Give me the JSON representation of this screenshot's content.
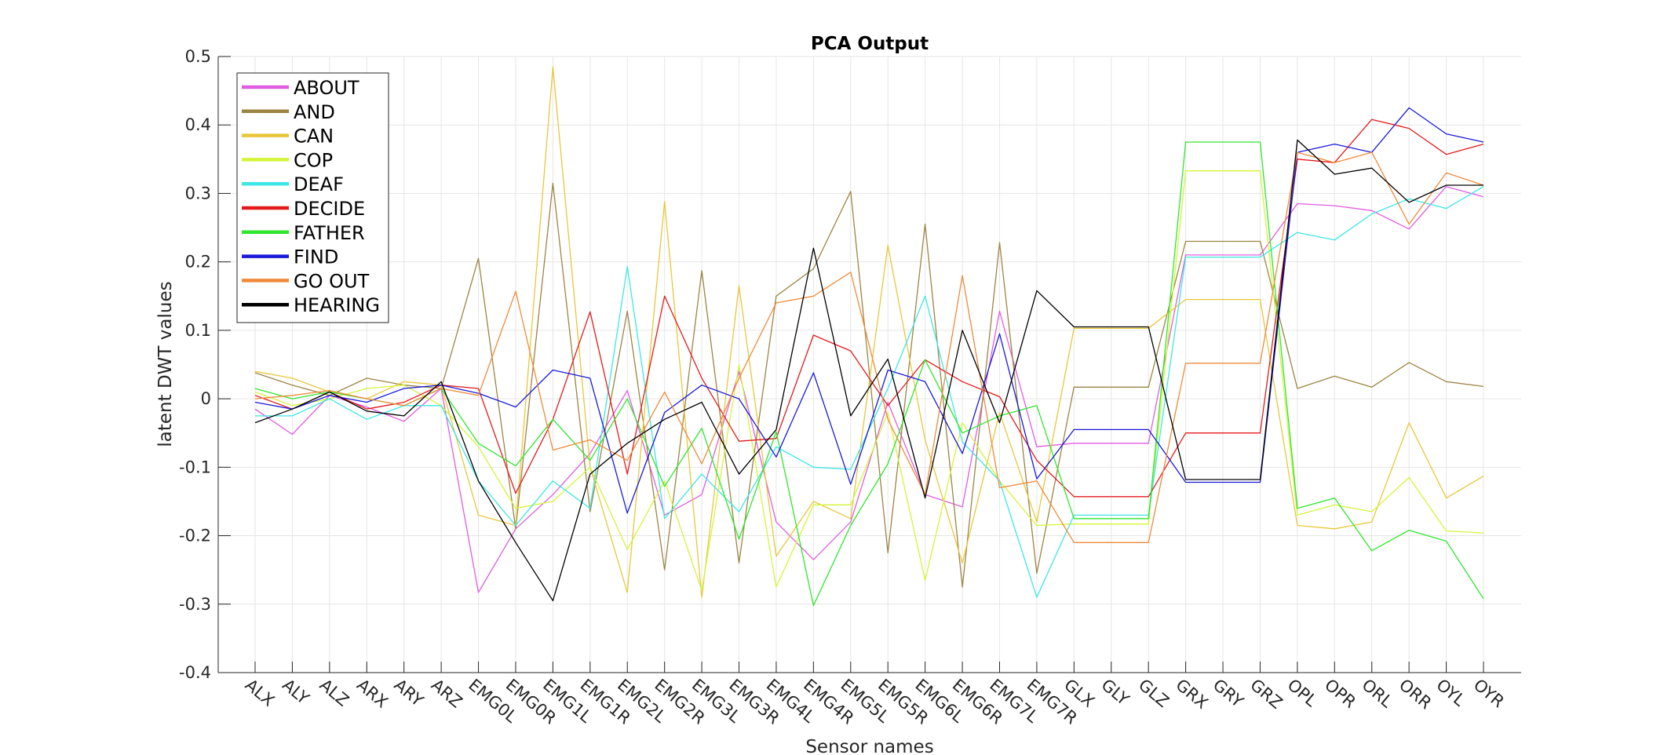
{
  "chart_data": {
    "type": "line",
    "title": "PCA Output",
    "xlabel": "Sensor names",
    "ylabel": "latent DWT values",
    "ylim": [
      -0.4,
      0.5
    ],
    "yticks": [
      "-0.4",
      "-0.3",
      "-0.2",
      "-0.1",
      "0",
      "0.1",
      "0.2",
      "0.3",
      "0.4",
      "0.5"
    ],
    "grid": true,
    "legend_position": "top-left",
    "categories": [
      "ALX",
      "ALY",
      "ALZ",
      "ARX",
      "ARY",
      "ARZ",
      "EMG0L",
      "EMG0R",
      "EMG1L",
      "EMG1R",
      "EMG2L",
      "EMG2R",
      "EMG3L",
      "EMG3R",
      "EMG4L",
      "EMG4R",
      "EMG5L",
      "EMG5R",
      "EMG6L",
      "EMG6R",
      "EMG7L",
      "EMG7R",
      "GLX",
      "GLY",
      "GLZ",
      "GRX",
      "GRY",
      "GRZ",
      "OPL",
      "OPR",
      "ORL",
      "ORR",
      "OYL",
      "OYR"
    ],
    "series": [
      {
        "name": "ABOUT",
        "color": "#e05ce0",
        "values": [
          -0.015,
          -0.052,
          0.005,
          -0.012,
          -0.033,
          0.015,
          -0.283,
          -0.19,
          -0.14,
          -0.08,
          0.012,
          -0.17,
          -0.14,
          0.04,
          -0.18,
          -0.235,
          -0.18,
          -0.005,
          -0.14,
          -0.158,
          0.128,
          -0.07,
          -0.065,
          -0.065,
          -0.065,
          0.21,
          0.21,
          0.21,
          0.285,
          0.282,
          0.275,
          0.248,
          0.31,
          0.295
        ]
      },
      {
        "name": "AND",
        "color": "#9c8443",
        "values": [
          0.038,
          0.02,
          0.005,
          0.03,
          0.02,
          0.015,
          0.205,
          -0.19,
          0.315,
          -0.165,
          0.128,
          -0.25,
          0.187,
          -0.24,
          0.15,
          0.19,
          0.303,
          -0.225,
          0.255,
          -0.275,
          0.228,
          -0.255,
          0.017,
          0.017,
          0.017,
          0.23,
          0.23,
          0.23,
          0.015,
          0.033,
          0.017,
          0.053,
          0.025,
          0.018
        ]
      },
      {
        "name": "CAN",
        "color": "#e8c73a",
        "values": [
          0.04,
          0.03,
          0.01,
          0.0,
          0.025,
          0.02,
          -0.17,
          -0.185,
          0.485,
          -0.1,
          -0.283,
          0.288,
          -0.29,
          0.165,
          -0.23,
          -0.15,
          -0.175,
          0.224,
          -0.06,
          -0.24,
          -0.02,
          -0.18,
          0.103,
          0.103,
          0.103,
          0.145,
          0.145,
          0.145,
          -0.185,
          -0.19,
          -0.18,
          -0.035,
          -0.145,
          -0.113
        ]
      },
      {
        "name": "COP",
        "color": "#d4f53a",
        "values": [
          0.01,
          -0.01,
          0.0,
          0.015,
          0.02,
          -0.01,
          -0.07,
          -0.16,
          -0.15,
          -0.1,
          -0.22,
          -0.12,
          -0.28,
          0.05,
          -0.275,
          -0.155,
          -0.155,
          -0.02,
          -0.265,
          -0.035,
          -0.12,
          -0.185,
          -0.183,
          -0.183,
          -0.183,
          0.333,
          0.333,
          0.333,
          -0.17,
          -0.155,
          -0.165,
          -0.115,
          -0.193,
          -0.196
        ]
      },
      {
        "name": "DEAF",
        "color": "#3de6e6",
        "values": [
          -0.025,
          -0.025,
          0.0,
          -0.03,
          -0.01,
          -0.01,
          -0.12,
          -0.185,
          -0.12,
          -0.16,
          0.193,
          -0.175,
          -0.11,
          -0.165,
          -0.07,
          -0.1,
          -0.103,
          0.015,
          0.15,
          -0.063,
          -0.12,
          -0.29,
          -0.17,
          -0.17,
          -0.17,
          0.207,
          0.207,
          0.207,
          0.243,
          0.232,
          0.27,
          0.292,
          0.278,
          0.31
        ]
      },
      {
        "name": "DECIDE",
        "color": "#e31a1c",
        "values": [
          0.005,
          -0.015,
          0.01,
          -0.015,
          -0.005,
          0.02,
          0.015,
          -0.138,
          -0.03,
          0.127,
          -0.11,
          0.15,
          0.03,
          -0.062,
          -0.058,
          0.093,
          0.07,
          -0.01,
          0.057,
          0.025,
          0.003,
          -0.09,
          -0.143,
          -0.143,
          -0.143,
          -0.05,
          -0.05,
          -0.05,
          0.35,
          0.345,
          0.408,
          0.395,
          0.357,
          0.372
        ]
      },
      {
        "name": "FATHER",
        "color": "#2ee62e",
        "values": [
          0.015,
          0.0,
          0.01,
          0.0,
          -0.01,
          0.015,
          -0.065,
          -0.098,
          -0.03,
          -0.09,
          0.0,
          -0.128,
          -0.043,
          -0.205,
          -0.048,
          -0.302,
          -0.185,
          -0.095,
          0.057,
          -0.05,
          -0.025,
          -0.01,
          -0.175,
          -0.175,
          -0.175,
          0.375,
          0.375,
          0.375,
          -0.16,
          -0.145,
          -0.222,
          -0.192,
          -0.208,
          -0.292
        ]
      },
      {
        "name": "FIND",
        "color": "#1919d9",
        "values": [
          -0.005,
          -0.015,
          0.005,
          -0.005,
          0.015,
          0.02,
          0.008,
          -0.012,
          0.042,
          0.03,
          -0.167,
          -0.02,
          0.02,
          0.0,
          -0.085,
          0.038,
          -0.125,
          0.042,
          0.025,
          -0.08,
          0.095,
          -0.117,
          -0.045,
          -0.045,
          -0.045,
          -0.122,
          -0.122,
          -0.122,
          0.36,
          0.372,
          0.36,
          0.425,
          0.387,
          0.375
        ]
      },
      {
        "name": "GO OUT",
        "color": "#f08a3a",
        "values": [
          0.0,
          0.005,
          0.012,
          0.0,
          -0.01,
          0.015,
          0.005,
          0.157,
          -0.075,
          -0.06,
          -0.09,
          0.01,
          -0.095,
          0.03,
          0.14,
          0.15,
          0.185,
          -0.03,
          -0.14,
          0.18,
          -0.13,
          -0.12,
          -0.21,
          -0.21,
          -0.21,
          0.052,
          0.052,
          0.052,
          0.36,
          0.345,
          0.36,
          0.255,
          0.33,
          0.312
        ]
      },
      {
        "name": "HEARING",
        "color": "#000000",
        "values": [
          -0.035,
          -0.015,
          0.01,
          -0.018,
          -0.025,
          0.025,
          -0.12,
          -0.21,
          -0.295,
          -0.11,
          -0.065,
          -0.03,
          -0.005,
          -0.11,
          -0.045,
          0.22,
          -0.025,
          0.058,
          -0.145,
          0.1,
          -0.035,
          0.158,
          0.105,
          0.105,
          0.105,
          -0.118,
          -0.118,
          -0.118,
          0.378,
          0.328,
          0.337,
          0.287,
          0.312,
          0.312
        ]
      }
    ]
  }
}
